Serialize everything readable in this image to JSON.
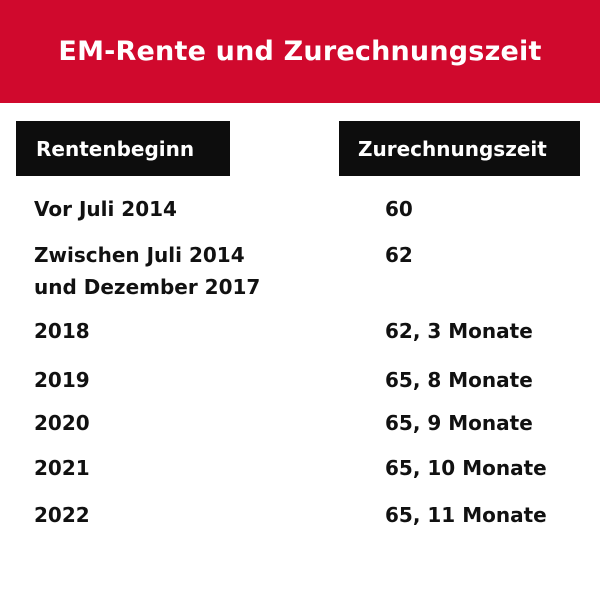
{
  "title": "EM-Rente und Zurechnungszeit",
  "brand_color": "#d0092d",
  "header_color": "#0d0d0d",
  "table": {
    "headers": [
      "Rentenbeginn",
      "Zurechnungszeit"
    ],
    "rows": [
      {
        "start": "Vor Juli 2014",
        "start_line2": "",
        "value": "60"
      },
      {
        "start": "Zwischen Juli 2014",
        "start_line2": "und Dezember 2017",
        "value": "62"
      },
      {
        "start": "2018",
        "start_line2": "",
        "value": "62, 3 Monate"
      },
      {
        "start": "2019",
        "start_line2": "",
        "value": "65, 8 Monate"
      },
      {
        "start": "2020",
        "start_line2": "",
        "value": "65, 9 Monate"
      },
      {
        "start": "2021",
        "start_line2": "",
        "value": "65, 10 Monate"
      },
      {
        "start": "2022",
        "start_line2": "",
        "value": "65, 11 Monate"
      }
    ]
  }
}
